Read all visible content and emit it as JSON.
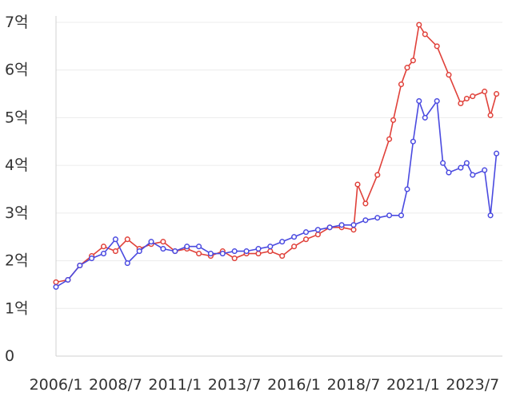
{
  "chart_data": {
    "type": "line",
    "title": "",
    "xlabel": "",
    "ylabel": "",
    "x_ticks": [
      "2006/1",
      "2008/7",
      "2011/1",
      "2013/7",
      "2016/1",
      "2018/7",
      "2021/1",
      "2023/7"
    ],
    "y_ticks": [
      "0",
      "1억",
      "2억",
      "3억",
      "4억",
      "5억",
      "6억",
      "7억"
    ],
    "ylim": [
      0,
      7
    ],
    "grid": true,
    "legend": "none",
    "series": [
      {
        "color": "#e0413a",
        "x": [
          "2006/1",
          "2006/7",
          "2007/1",
          "2007/7",
          "2008/1",
          "2008/7",
          "2009/1",
          "2009/7",
          "2010/1",
          "2010/7",
          "2011/1",
          "2011/7",
          "2012/1",
          "2012/7",
          "2013/1",
          "2013/7",
          "2014/1",
          "2014/7",
          "2015/1",
          "2015/7",
          "2016/1",
          "2016/7",
          "2017/1",
          "2017/7",
          "2018/1",
          "2018/7",
          "2018/9",
          "2019/1",
          "2019/7",
          "2020/1",
          "2020/3",
          "2020/7",
          "2020/10",
          "2021/1",
          "2021/4",
          "2021/7",
          "2022/1",
          "2022/7",
          "2023/1",
          "2023/4",
          "2023/7",
          "2024/1",
          "2024/4",
          "2024/7"
        ],
        "values": [
          1.55,
          1.6,
          1.9,
          2.1,
          2.3,
          2.2,
          2.45,
          2.25,
          2.35,
          2.4,
          2.2,
          2.25,
          2.15,
          2.1,
          2.2,
          2.05,
          2.15,
          2.15,
          2.2,
          2.1,
          2.3,
          2.45,
          2.55,
          2.7,
          2.7,
          2.65,
          3.6,
          3.2,
          3.8,
          4.55,
          4.95,
          5.7,
          6.05,
          6.2,
          6.95,
          6.75,
          6.5,
          5.9,
          5.3,
          5.4,
          5.45,
          5.55,
          5.05,
          5.5
        ]
      },
      {
        "color": "#4a4ae0",
        "x": [
          "2006/1",
          "2006/7",
          "2007/1",
          "2007/7",
          "2008/1",
          "2008/7",
          "2009/1",
          "2009/7",
          "2010/1",
          "2010/7",
          "2011/1",
          "2011/7",
          "2012/1",
          "2012/7",
          "2013/1",
          "2013/7",
          "2014/1",
          "2014/7",
          "2015/1",
          "2015/7",
          "2016/1",
          "2016/7",
          "2017/1",
          "2017/7",
          "2018/1",
          "2018/7",
          "2019/1",
          "2019/7",
          "2020/1",
          "2020/7",
          "2020/10",
          "2021/1",
          "2021/4",
          "2021/7",
          "2022/1",
          "2022/4",
          "2022/7",
          "2023/1",
          "2023/4",
          "2023/7",
          "2024/1",
          "2024/4",
          "2024/7"
        ],
        "values": [
          1.45,
          1.6,
          1.9,
          2.05,
          2.15,
          2.45,
          1.95,
          2.2,
          2.4,
          2.25,
          2.2,
          2.3,
          2.3,
          2.15,
          2.15,
          2.2,
          2.2,
          2.25,
          2.3,
          2.4,
          2.5,
          2.6,
          2.65,
          2.7,
          2.75,
          2.75,
          2.85,
          2.9,
          2.95,
          2.95,
          3.5,
          4.5,
          5.35,
          5.0,
          5.35,
          4.05,
          3.85,
          3.95,
          4.05,
          3.8,
          3.9,
          2.95,
          4.25
        ]
      }
    ]
  }
}
